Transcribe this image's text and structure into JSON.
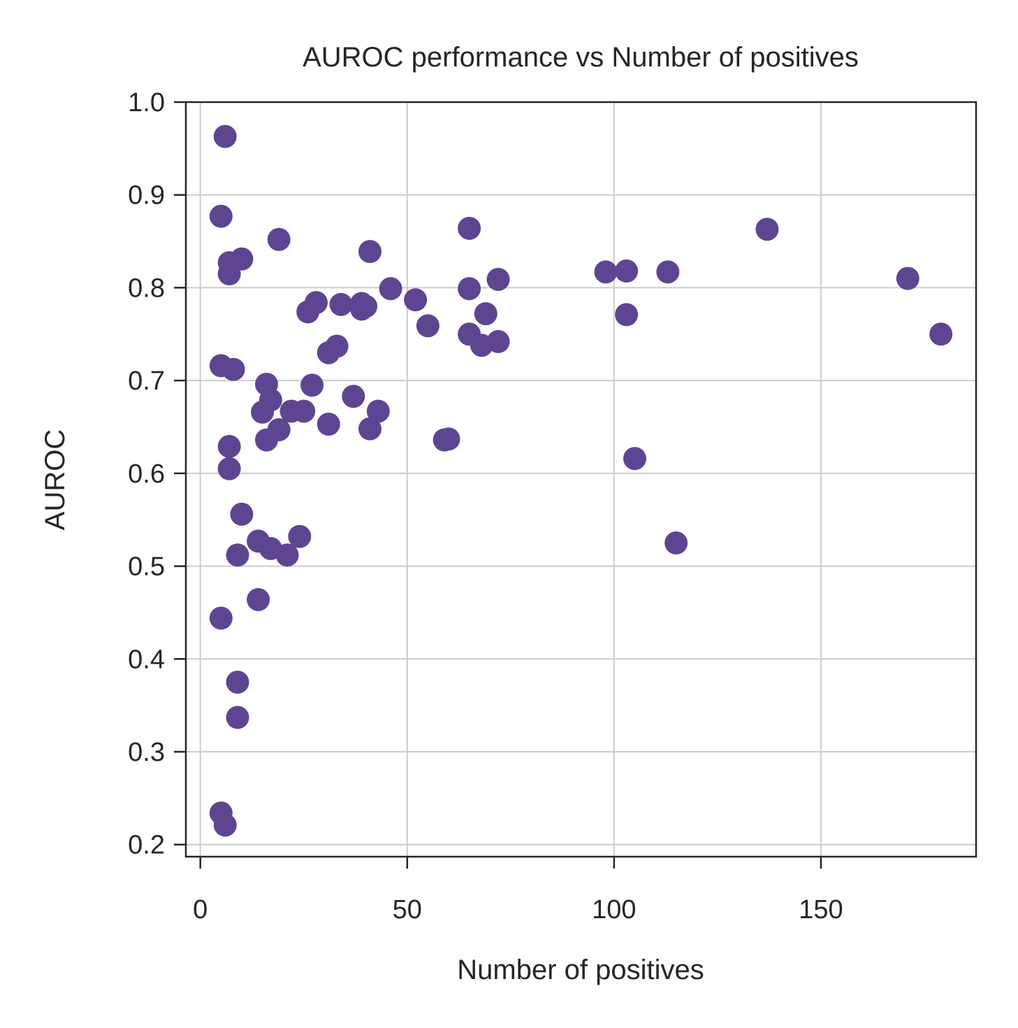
{
  "chart_data": {
    "type": "scatter",
    "title": "AUROC performance vs Number of positives",
    "xlabel": "Number of positives",
    "ylabel": "AUROC",
    "xlim": [
      -3.5,
      187.5
    ],
    "ylim": [
      0.187,
      1.0
    ],
    "xticks": [
      0,
      50,
      100,
      150
    ],
    "xtick_labels": [
      "0",
      "50",
      "100",
      "150"
    ],
    "yticks": [
      0.2,
      0.3,
      0.4,
      0.5,
      0.6,
      0.7,
      0.8,
      0.9,
      1.0
    ],
    "ytick_labels": [
      "0.2",
      "0.3",
      "0.4",
      "0.5",
      "0.6",
      "0.7",
      "0.8",
      "0.9",
      "1.0"
    ],
    "grid": true,
    "marker_color": "#5e4591",
    "points": [
      {
        "x": 6,
        "y": 0.963
      },
      {
        "x": 5,
        "y": 0.877
      },
      {
        "x": 7,
        "y": 0.827
      },
      {
        "x": 10,
        "y": 0.831
      },
      {
        "x": 7,
        "y": 0.815
      },
      {
        "x": 19,
        "y": 0.852
      },
      {
        "x": 5,
        "y": 0.716
      },
      {
        "x": 8,
        "y": 0.712
      },
      {
        "x": 16,
        "y": 0.696
      },
      {
        "x": 17,
        "y": 0.679
      },
      {
        "x": 15,
        "y": 0.666
      },
      {
        "x": 19,
        "y": 0.647
      },
      {
        "x": 16,
        "y": 0.636
      },
      {
        "x": 7,
        "y": 0.629
      },
      {
        "x": 7,
        "y": 0.605
      },
      {
        "x": 10,
        "y": 0.556
      },
      {
        "x": 14,
        "y": 0.527
      },
      {
        "x": 17,
        "y": 0.519
      },
      {
        "x": 9,
        "y": 0.512
      },
      {
        "x": 21,
        "y": 0.512
      },
      {
        "x": 24,
        "y": 0.532
      },
      {
        "x": 14,
        "y": 0.464
      },
      {
        "x": 5,
        "y": 0.444
      },
      {
        "x": 9,
        "y": 0.375
      },
      {
        "x": 9,
        "y": 0.337
      },
      {
        "x": 5,
        "y": 0.234
      },
      {
        "x": 6,
        "y": 0.221
      },
      {
        "x": 26,
        "y": 0.774
      },
      {
        "x": 28,
        "y": 0.784
      },
      {
        "x": 34,
        "y": 0.782
      },
      {
        "x": 39,
        "y": 0.783
      },
      {
        "x": 39,
        "y": 0.777
      },
      {
        "x": 40,
        "y": 0.78
      },
      {
        "x": 41,
        "y": 0.839
      },
      {
        "x": 46,
        "y": 0.799
      },
      {
        "x": 31,
        "y": 0.73
      },
      {
        "x": 33,
        "y": 0.737
      },
      {
        "x": 27,
        "y": 0.695
      },
      {
        "x": 22,
        "y": 0.667
      },
      {
        "x": 25,
        "y": 0.667
      },
      {
        "x": 31,
        "y": 0.653
      },
      {
        "x": 37,
        "y": 0.683
      },
      {
        "x": 43,
        "y": 0.667
      },
      {
        "x": 41,
        "y": 0.648
      },
      {
        "x": 52,
        "y": 0.787
      },
      {
        "x": 55,
        "y": 0.759
      },
      {
        "x": 59,
        "y": 0.636
      },
      {
        "x": 60,
        "y": 0.637
      },
      {
        "x": 65,
        "y": 0.864
      },
      {
        "x": 65,
        "y": 0.799
      },
      {
        "x": 65,
        "y": 0.75
      },
      {
        "x": 68,
        "y": 0.738
      },
      {
        "x": 69,
        "y": 0.772
      },
      {
        "x": 72,
        "y": 0.809
      },
      {
        "x": 72,
        "y": 0.742
      },
      {
        "x": 98,
        "y": 0.817
      },
      {
        "x": 103,
        "y": 0.818
      },
      {
        "x": 103,
        "y": 0.771
      },
      {
        "x": 105,
        "y": 0.616
      },
      {
        "x": 113,
        "y": 0.817
      },
      {
        "x": 115,
        "y": 0.525
      },
      {
        "x": 137,
        "y": 0.863
      },
      {
        "x": 171,
        "y": 0.81
      },
      {
        "x": 179,
        "y": 0.75
      }
    ]
  }
}
